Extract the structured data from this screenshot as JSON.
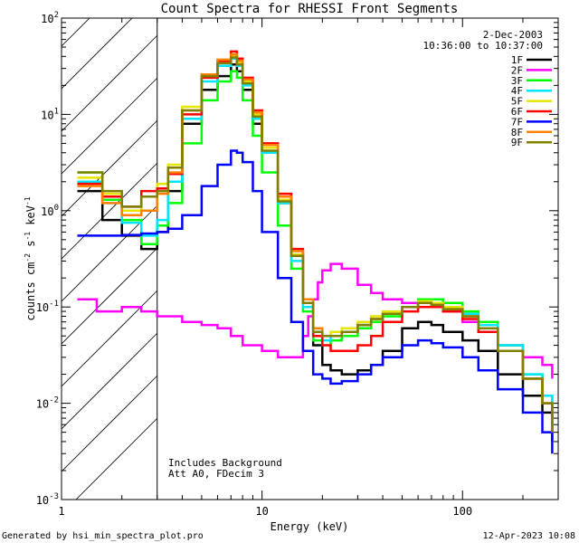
{
  "chart_data": {
    "type": "line",
    "title": "Count Spectra for RHESSI Front Segments",
    "xlabel": "Energy (keV)",
    "ylabel_main": "counts cm",
    "ylabel_exp1": "-2",
    "ylabel_mid": " s",
    "ylabel_exp2": "-1",
    "ylabel_end": " keV",
    "ylabel_exp3": "-1",
    "xscale": "log",
    "yscale": "log",
    "xlim": [
      1,
      300
    ],
    "ylim": [
      0.001,
      100
    ],
    "x_ticks": [
      {
        "value": 1,
        "label": "1"
      },
      {
        "value": 10,
        "label": "10"
      },
      {
        "value": 100,
        "label": "100"
      }
    ],
    "y_ticks": [
      {
        "value": 0.001,
        "base": "10",
        "exp": "-3"
      },
      {
        "value": 0.01,
        "base": "10",
        "exp": "-2"
      },
      {
        "value": 0.1,
        "base": "10",
        "exp": "-1"
      },
      {
        "value": 1,
        "base": "10",
        "exp": "0"
      },
      {
        "value": 10,
        "base": "10",
        "exp": "1"
      },
      {
        "value": 100,
        "base": "10",
        "exp": "2"
      }
    ],
    "hatched_region": [
      1,
      3
    ],
    "date": "2-Dec-2003",
    "time_range": "10:36:00 to 10:37:00",
    "annotations": [
      "Includes Background",
      "Att A0, FDecim 3"
    ],
    "footer_left": "Generated by hsi_min_spectra_plot.pro",
    "footer_right": "12-Apr-2023 10:08",
    "series": [
      {
        "name": "1F",
        "color": "#000000",
        "x": [
          1.2,
          1.6,
          2.0,
          2.5,
          3.0,
          3.4,
          4.0,
          5.0,
          6.0,
          7.0,
          7.5,
          8.0,
          9.0,
          10.0,
          12.0,
          14.0,
          16.0,
          18.0,
          20.0,
          22.0,
          25.0,
          30.0,
          35.0,
          40.0,
          50.0,
          60.0,
          70.0,
          80.0,
          100.0,
          120.0,
          150.0,
          200.0,
          250.0,
          280.0
        ],
        "y": [
          1.6,
          0.8,
          0.55,
          0.4,
          0.6,
          1.6,
          8.0,
          18.0,
          25.0,
          33.0,
          28.0,
          18.0,
          8.0,
          4.0,
          1.2,
          0.35,
          0.11,
          0.04,
          0.025,
          0.022,
          0.02,
          0.022,
          0.025,
          0.035,
          0.06,
          0.07,
          0.065,
          0.055,
          0.045,
          0.035,
          0.02,
          0.012,
          0.008,
          0.004
        ]
      },
      {
        "name": "2F",
        "color": "#ff00ff",
        "x": [
          1.2,
          1.5,
          2.0,
          2.5,
          3.0,
          4.0,
          5.0,
          6.0,
          7.0,
          8.0,
          10.0,
          12.0,
          14.0,
          16.0,
          17.0,
          18.0,
          19.0,
          20.0,
          22.0,
          25.0,
          30.0,
          35.0,
          40.0,
          50.0,
          60.0,
          70.0,
          80.0,
          100.0,
          120.0,
          150.0,
          200.0,
          250.0,
          280.0
        ],
        "y": [
          0.12,
          0.09,
          0.1,
          0.09,
          0.08,
          0.07,
          0.065,
          0.06,
          0.05,
          0.04,
          0.035,
          0.03,
          0.03,
          0.05,
          0.08,
          0.12,
          0.18,
          0.24,
          0.28,
          0.25,
          0.17,
          0.14,
          0.12,
          0.11,
          0.11,
          0.1,
          0.09,
          0.07,
          0.055,
          0.04,
          0.03,
          0.025,
          0.018
        ]
      },
      {
        "name": "3F",
        "color": "#00ff00",
        "x": [
          1.2,
          1.6,
          2.0,
          2.5,
          3.0,
          3.4,
          4.0,
          5.0,
          6.0,
          7.0,
          7.5,
          8.0,
          9.0,
          10.0,
          12.0,
          14.0,
          16.0,
          18.0,
          20.0,
          22.0,
          25.0,
          30.0,
          35.0,
          40.0,
          50.0,
          60.0,
          70.0,
          80.0,
          100.0,
          120.0,
          150.0,
          200.0,
          250.0,
          280.0
        ],
        "y": [
          2.5,
          1.3,
          0.8,
          0.45,
          0.7,
          1.2,
          5.0,
          14.0,
          22.0,
          28.0,
          24.0,
          14.0,
          6.0,
          2.5,
          0.7,
          0.25,
          0.09,
          0.045,
          0.04,
          0.045,
          0.05,
          0.06,
          0.07,
          0.08,
          0.1,
          0.12,
          0.12,
          0.11,
          0.09,
          0.07,
          0.04,
          0.02,
          0.012,
          0.006
        ]
      },
      {
        "name": "4F",
        "color": "#00e5ff",
        "x": [
          1.2,
          1.6,
          2.0,
          2.5,
          3.0,
          3.4,
          4.0,
          5.0,
          6.0,
          7.0,
          7.5,
          8.0,
          9.0,
          10.0,
          12.0,
          14.0,
          16.0,
          18.0,
          20.0,
          22.0,
          25.0,
          30.0,
          35.0,
          40.0,
          50.0,
          60.0,
          70.0,
          80.0,
          100.0,
          120.0,
          150.0,
          200.0,
          250.0,
          280.0
        ],
        "y": [
          2.0,
          1.2,
          0.75,
          0.55,
          0.8,
          2.0,
          9.0,
          22.0,
          32.0,
          38.0,
          32.0,
          20.0,
          9.0,
          4.0,
          1.2,
          0.3,
          0.1,
          0.05,
          0.045,
          0.05,
          0.055,
          0.065,
          0.075,
          0.085,
          0.1,
          0.11,
          0.11,
          0.1,
          0.085,
          0.065,
          0.04,
          0.02,
          0.012,
          0.006
        ]
      },
      {
        "name": "5F",
        "color": "#e6e600",
        "x": [
          1.2,
          1.6,
          2.0,
          2.5,
          3.0,
          3.4,
          4.0,
          5.0,
          6.0,
          7.0,
          7.5,
          8.0,
          9.0,
          10.0,
          12.0,
          14.0,
          16.0,
          18.0,
          20.0,
          22.0,
          25.0,
          30.0,
          35.0,
          40.0,
          50.0,
          60.0,
          70.0,
          80.0,
          100.0,
          120.0,
          150.0,
          200.0,
          250.0,
          280.0
        ],
        "y": [
          2.2,
          1.5,
          1.0,
          1.4,
          1.9,
          3.0,
          12.0,
          26.0,
          35.0,
          40.0,
          34.0,
          22.0,
          10.0,
          4.5,
          1.3,
          0.35,
          0.11,
          0.055,
          0.05,
          0.055,
          0.06,
          0.07,
          0.08,
          0.09,
          0.1,
          0.115,
          0.11,
          0.1,
          0.08,
          0.06,
          0.035,
          0.018,
          0.01,
          0.005
        ]
      },
      {
        "name": "6F",
        "color": "#ff0000",
        "x": [
          1.2,
          1.6,
          2.0,
          2.5,
          3.0,
          3.4,
          4.0,
          5.0,
          6.0,
          7.0,
          7.5,
          8.0,
          9.0,
          10.0,
          12.0,
          14.0,
          16.0,
          18.0,
          20.0,
          22.0,
          25.0,
          30.0,
          35.0,
          40.0,
          50.0,
          60.0,
          70.0,
          80.0,
          100.0,
          120.0,
          150.0,
          200.0,
          250.0,
          280.0
        ],
        "y": [
          1.9,
          1.4,
          1.1,
          1.6,
          1.7,
          2.4,
          10.0,
          24.0,
          36.0,
          45.0,
          38.0,
          24.0,
          11.0,
          5.0,
          1.5,
          0.4,
          0.12,
          0.05,
          0.04,
          0.035,
          0.035,
          0.04,
          0.05,
          0.07,
          0.09,
          0.1,
          0.1,
          0.09,
          0.075,
          0.055,
          0.035,
          0.018,
          0.01,
          0.005
        ]
      },
      {
        "name": "7F",
        "color": "#0000ff",
        "x": [
          1.2,
          1.6,
          2.0,
          2.5,
          3.0,
          3.4,
          4.0,
          5.0,
          6.0,
          7.0,
          7.5,
          8.0,
          9.0,
          10.0,
          12.0,
          14.0,
          16.0,
          18.0,
          20.0,
          22.0,
          25.0,
          30.0,
          35.0,
          40.0,
          50.0,
          60.0,
          70.0,
          80.0,
          100.0,
          120.0,
          150.0,
          200.0,
          250.0,
          280.0
        ],
        "y": [
          0.55,
          0.55,
          0.56,
          0.58,
          0.6,
          0.65,
          0.9,
          1.8,
          3.0,
          4.2,
          4.0,
          3.2,
          1.6,
          0.6,
          0.2,
          0.07,
          0.035,
          0.02,
          0.018,
          0.016,
          0.017,
          0.02,
          0.025,
          0.03,
          0.04,
          0.045,
          0.042,
          0.038,
          0.03,
          0.022,
          0.014,
          0.008,
          0.005,
          0.003
        ]
      },
      {
        "name": "8F",
        "color": "#ff8000",
        "x": [
          1.2,
          1.6,
          2.0,
          2.5,
          3.0,
          3.4,
          4.0,
          5.0,
          6.0,
          7.0,
          7.5,
          8.0,
          9.0,
          10.0,
          12.0,
          14.0,
          16.0,
          18.0,
          20.0,
          22.0,
          25.0,
          30.0,
          35.0,
          40.0,
          50.0,
          60.0,
          70.0,
          80.0,
          100.0,
          120.0,
          150.0,
          200.0,
          250.0,
          280.0
        ],
        "y": [
          1.8,
          1.2,
          0.9,
          1.0,
          1.5,
          2.5,
          11.0,
          26.0,
          37.0,
          42.0,
          36.0,
          23.0,
          10.5,
          4.8,
          1.4,
          0.38,
          0.12,
          0.06,
          0.05,
          0.05,
          0.055,
          0.065,
          0.075,
          0.085,
          0.1,
          0.11,
          0.105,
          0.095,
          0.08,
          0.06,
          0.035,
          0.018,
          0.01,
          0.005
        ]
      },
      {
        "name": "9F",
        "color": "#808000",
        "x": [
          1.2,
          1.6,
          2.0,
          2.5,
          3.0,
          3.4,
          4.0,
          5.0,
          6.0,
          7.0,
          7.5,
          8.0,
          9.0,
          10.0,
          12.0,
          14.0,
          16.0,
          18.0,
          20.0,
          22.0,
          25.0,
          30.0,
          35.0,
          40.0,
          50.0,
          60.0,
          70.0,
          80.0,
          100.0,
          120.0,
          150.0,
          200.0,
          250.0,
          280.0
        ],
        "y": [
          2.5,
          1.6,
          1.1,
          1.4,
          1.6,
          2.8,
          11.0,
          25.0,
          34.0,
          39.0,
          33.0,
          21.0,
          9.5,
          4.2,
          1.25,
          0.34,
          0.11,
          0.055,
          0.05,
          0.05,
          0.055,
          0.065,
          0.075,
          0.085,
          0.1,
          0.11,
          0.105,
          0.095,
          0.08,
          0.06,
          0.035,
          0.018,
          0.01,
          0.005
        ]
      }
    ]
  }
}
